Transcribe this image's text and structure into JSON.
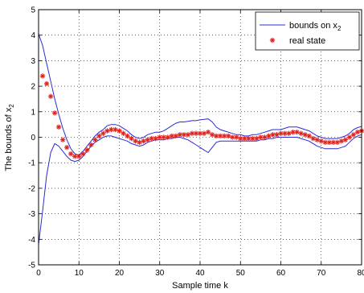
{
  "chart_data": {
    "type": "line",
    "title": "",
    "xlabel": "Sample time k",
    "ylabel": "The bounds of x_2",
    "xlim": [
      0,
      80
    ],
    "ylim": [
      -5,
      5
    ],
    "xticks": [
      0,
      10,
      20,
      30,
      40,
      50,
      60,
      70,
      80
    ],
    "yticks": [
      -5,
      -4,
      -3,
      -2,
      -1,
      0,
      1,
      2,
      3,
      4,
      5
    ],
    "grid": true,
    "legend_position": "top-right",
    "colors": {
      "bounds": "#2b2bd6",
      "real_state": "#e0201c"
    },
    "series": [
      {
        "name": "bounds on x_2",
        "style": "line",
        "upper": [
          [
            0,
            4.05
          ],
          [
            1,
            3.6
          ],
          [
            2,
            2.9
          ],
          [
            3,
            2.2
          ],
          [
            4,
            1.5
          ],
          [
            5,
            0.9
          ],
          [
            6,
            0.35
          ],
          [
            7,
            -0.1
          ],
          [
            8,
            -0.45
          ],
          [
            9,
            -0.65
          ],
          [
            10,
            -0.7
          ],
          [
            11,
            -0.55
          ],
          [
            12,
            -0.35
          ],
          [
            13,
            -0.15
          ],
          [
            14,
            0.05
          ],
          [
            15,
            0.2
          ],
          [
            16,
            0.3
          ],
          [
            17,
            0.45
          ],
          [
            18,
            0.5
          ],
          [
            19,
            0.5
          ],
          [
            20,
            0.45
          ],
          [
            21,
            0.35
          ],
          [
            22,
            0.25
          ],
          [
            23,
            0.1
          ],
          [
            24,
            0.0
          ],
          [
            25,
            -0.05
          ],
          [
            26,
            0.0
          ],
          [
            27,
            0.1
          ],
          [
            28,
            0.15
          ],
          [
            29,
            0.2
          ],
          [
            30,
            0.2
          ],
          [
            31,
            0.25
          ],
          [
            32,
            0.35
          ],
          [
            33,
            0.45
          ],
          [
            34,
            0.55
          ],
          [
            35,
            0.6
          ],
          [
            36,
            0.6
          ],
          [
            37,
            0.62
          ],
          [
            38,
            0.65
          ],
          [
            39,
            0.65
          ],
          [
            40,
            0.68
          ],
          [
            41,
            0.7
          ],
          [
            42,
            0.72
          ],
          [
            43,
            0.6
          ],
          [
            44,
            0.4
          ],
          [
            45,
            0.3
          ],
          [
            46,
            0.25
          ],
          [
            47,
            0.2
          ],
          [
            48,
            0.15
          ],
          [
            49,
            0.1
          ],
          [
            50,
            0.1
          ],
          [
            51,
            0.05
          ],
          [
            52,
            0.05
          ],
          [
            53,
            0.1
          ],
          [
            54,
            0.1
          ],
          [
            55,
            0.15
          ],
          [
            56,
            0.2
          ],
          [
            57,
            0.25
          ],
          [
            58,
            0.3
          ],
          [
            59,
            0.3
          ],
          [
            60,
            0.3
          ],
          [
            61,
            0.35
          ],
          [
            62,
            0.4
          ],
          [
            63,
            0.4
          ],
          [
            64,
            0.4
          ],
          [
            65,
            0.35
          ],
          [
            66,
            0.3
          ],
          [
            67,
            0.25
          ],
          [
            68,
            0.15
          ],
          [
            69,
            0.05
          ],
          [
            70,
            0.0
          ],
          [
            71,
            -0.05
          ],
          [
            72,
            -0.05
          ],
          [
            73,
            -0.05
          ],
          [
            74,
            -0.05
          ],
          [
            75,
            0.0
          ],
          [
            76,
            0.05
          ],
          [
            77,
            0.15
          ],
          [
            78,
            0.3
          ],
          [
            79,
            0.38
          ],
          [
            80,
            0.42
          ]
        ],
        "lower": [
          [
            0,
            -4.2
          ],
          [
            1,
            -2.9
          ],
          [
            2,
            -1.5
          ],
          [
            3,
            -0.6
          ],
          [
            4,
            -0.25
          ],
          [
            5,
            -0.35
          ],
          [
            6,
            -0.55
          ],
          [
            7,
            -0.75
          ],
          [
            8,
            -0.9
          ],
          [
            9,
            -0.95
          ],
          [
            10,
            -0.9
          ],
          [
            11,
            -0.75
          ],
          [
            12,
            -0.55
          ],
          [
            13,
            -0.35
          ],
          [
            14,
            -0.2
          ],
          [
            15,
            -0.1
          ],
          [
            16,
            0.0
          ],
          [
            17,
            0.05
          ],
          [
            18,
            0.05
          ],
          [
            19,
            0.0
          ],
          [
            20,
            -0.05
          ],
          [
            21,
            -0.1
          ],
          [
            22,
            -0.15
          ],
          [
            23,
            -0.25
          ],
          [
            24,
            -0.3
          ],
          [
            25,
            -0.35
          ],
          [
            26,
            -0.3
          ],
          [
            27,
            -0.2
          ],
          [
            28,
            -0.15
          ],
          [
            29,
            -0.1
          ],
          [
            30,
            -0.1
          ],
          [
            31,
            -0.1
          ],
          [
            32,
            -0.05
          ],
          [
            33,
            -0.05
          ],
          [
            34,
            0.0
          ],
          [
            35,
            0.0
          ],
          [
            36,
            -0.05
          ],
          [
            37,
            -0.1
          ],
          [
            38,
            -0.2
          ],
          [
            39,
            -0.3
          ],
          [
            40,
            -0.4
          ],
          [
            41,
            -0.5
          ],
          [
            42,
            -0.6
          ],
          [
            43,
            -0.4
          ],
          [
            44,
            -0.2
          ],
          [
            45,
            -0.15
          ],
          [
            46,
            -0.15
          ],
          [
            47,
            -0.15
          ],
          [
            48,
            -0.15
          ],
          [
            49,
            -0.15
          ],
          [
            50,
            -0.15
          ],
          [
            51,
            -0.15
          ],
          [
            52,
            -0.15
          ],
          [
            53,
            -0.15
          ],
          [
            54,
            -0.15
          ],
          [
            55,
            -0.1
          ],
          [
            56,
            -0.1
          ],
          [
            57,
            -0.05
          ],
          [
            58,
            -0.05
          ],
          [
            59,
            0.0
          ],
          [
            60,
            0.0
          ],
          [
            61,
            0.0
          ],
          [
            62,
            0.0
          ],
          [
            63,
            0.0
          ],
          [
            64,
            0.0
          ],
          [
            65,
            -0.05
          ],
          [
            66,
            -0.1
          ],
          [
            67,
            -0.15
          ],
          [
            68,
            -0.25
          ],
          [
            69,
            -0.35
          ],
          [
            70,
            -0.4
          ],
          [
            71,
            -0.45
          ],
          [
            72,
            -0.45
          ],
          [
            73,
            -0.45
          ],
          [
            74,
            -0.45
          ],
          [
            75,
            -0.4
          ],
          [
            76,
            -0.35
          ],
          [
            77,
            -0.2
          ],
          [
            78,
            -0.05
          ],
          [
            79,
            0.05
          ],
          [
            80,
            0.1
          ]
        ]
      },
      {
        "name": "real state",
        "style": "marker-asterisk",
        "points": [
          [
            1,
            2.4
          ],
          [
            2,
            2.1
          ],
          [
            3,
            1.6
          ],
          [
            4,
            0.95
          ],
          [
            5,
            0.4
          ],
          [
            6,
            -0.1
          ],
          [
            7,
            -0.4
          ],
          [
            8,
            -0.65
          ],
          [
            9,
            -0.75
          ],
          [
            10,
            -0.75
          ],
          [
            11,
            -0.65
          ],
          [
            12,
            -0.5
          ],
          [
            13,
            -0.3
          ],
          [
            14,
            -0.1
          ],
          [
            15,
            0.05
          ],
          [
            16,
            0.15
          ],
          [
            17,
            0.25
          ],
          [
            18,
            0.3
          ],
          [
            19,
            0.3
          ],
          [
            20,
            0.25
          ],
          [
            21,
            0.15
          ],
          [
            22,
            0.05
          ],
          [
            23,
            -0.05
          ],
          [
            24,
            -0.15
          ],
          [
            25,
            -0.2
          ],
          [
            26,
            -0.15
          ],
          [
            27,
            -0.1
          ],
          [
            28,
            -0.05
          ],
          [
            29,
            -0.05
          ],
          [
            30,
            0.0
          ],
          [
            31,
            0.0
          ],
          [
            32,
            0.0
          ],
          [
            33,
            0.05
          ],
          [
            34,
            0.05
          ],
          [
            35,
            0.1
          ],
          [
            36,
            0.1
          ],
          [
            37,
            0.1
          ],
          [
            38,
            0.15
          ],
          [
            39,
            0.15
          ],
          [
            40,
            0.15
          ],
          [
            41,
            0.15
          ],
          [
            42,
            0.2
          ],
          [
            43,
            0.1
          ],
          [
            44,
            0.05
          ],
          [
            45,
            0.05
          ],
          [
            46,
            0.05
          ],
          [
            47,
            0.05
          ],
          [
            48,
            0.0
          ],
          [
            49,
            0.0
          ],
          [
            50,
            -0.05
          ],
          [
            51,
            -0.05
          ],
          [
            52,
            -0.05
          ],
          [
            53,
            -0.05
          ],
          [
            54,
            -0.05
          ],
          [
            55,
            0.0
          ],
          [
            56,
            0.0
          ],
          [
            57,
            0.05
          ],
          [
            58,
            0.1
          ],
          [
            59,
            0.1
          ],
          [
            60,
            0.15
          ],
          [
            61,
            0.15
          ],
          [
            62,
            0.15
          ],
          [
            63,
            0.2
          ],
          [
            64,
            0.2
          ],
          [
            65,
            0.15
          ],
          [
            66,
            0.1
          ],
          [
            67,
            0.05
          ],
          [
            68,
            -0.05
          ],
          [
            69,
            -0.1
          ],
          [
            70,
            -0.15
          ],
          [
            71,
            -0.2
          ],
          [
            72,
            -0.2
          ],
          [
            73,
            -0.2
          ],
          [
            74,
            -0.2
          ],
          [
            75,
            -0.15
          ],
          [
            76,
            -0.1
          ],
          [
            77,
            0.0
          ],
          [
            78,
            0.1
          ],
          [
            79,
            0.2
          ],
          [
            80,
            0.25
          ]
        ]
      }
    ]
  }
}
